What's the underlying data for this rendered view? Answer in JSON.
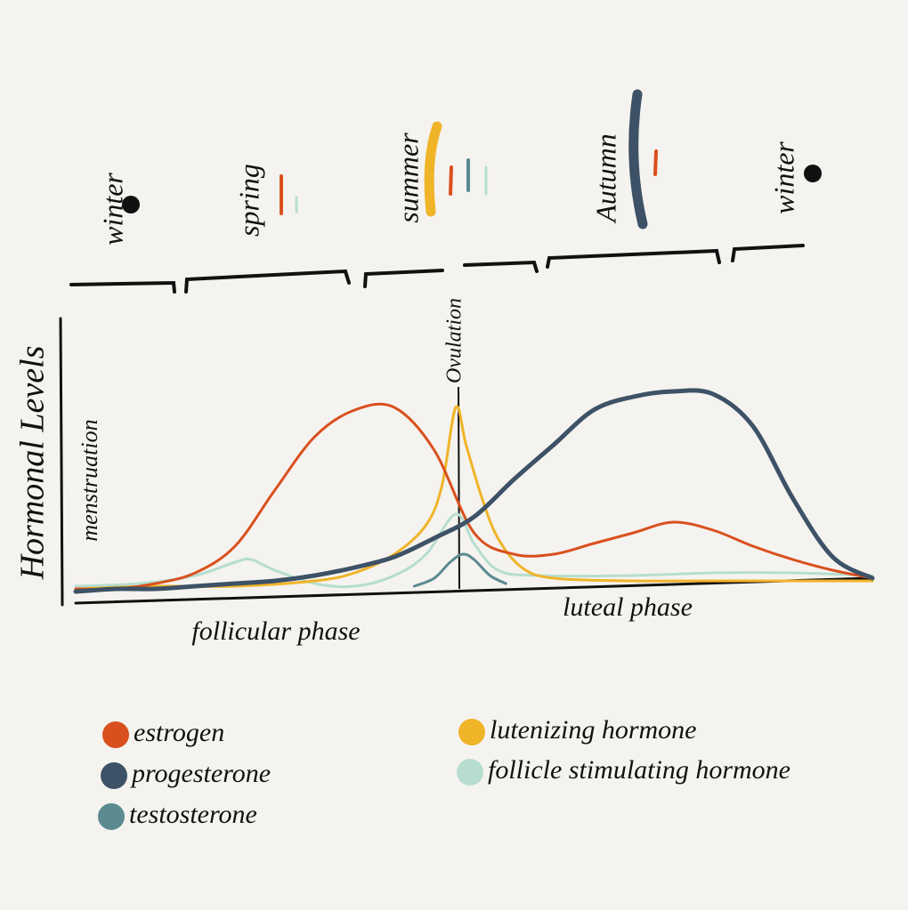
{
  "chart_data": {
    "type": "line",
    "ylabel": "Hormonal Levels",
    "seasons": [
      "winter",
      "spring",
      "summer",
      "Autumn",
      "winter"
    ],
    "annotations": [
      "Ovulation",
      "menstruation",
      "follicular phase",
      "luteal phase"
    ],
    "xlim": [
      0,
      100
    ],
    "ylim": [
      0,
      100
    ],
    "series": [
      {
        "name": "estrogen",
        "color": "#d9501e",
        "x": [
          0,
          5,
          10,
          15,
          20,
          25,
          30,
          35,
          40,
          45,
          50,
          55,
          60,
          65,
          70,
          75,
          80,
          85,
          90,
          95,
          100
        ],
        "values": [
          1,
          1,
          3,
          7,
          17,
          38,
          58,
          68,
          69,
          53,
          22,
          14,
          14,
          18,
          22,
          26,
          23,
          17,
          12,
          8,
          5
        ]
      },
      {
        "name": "progesterone",
        "color": "#3d5266",
        "x": [
          0,
          5,
          10,
          15,
          20,
          25,
          30,
          35,
          40,
          45,
          50,
          55,
          60,
          65,
          70,
          75,
          80,
          85,
          90,
          95,
          100
        ],
        "values": [
          0,
          1,
          1,
          2,
          3,
          4,
          6,
          9,
          13,
          20,
          28,
          42,
          55,
          68,
          73,
          75,
          74,
          62,
          35,
          13,
          5
        ]
      },
      {
        "name": "testosterone",
        "color": "#5b8a90",
        "x": [
          42.5,
          45,
          47,
          48.6,
          50,
          52,
          54
        ],
        "values": [
          2,
          5,
          11,
          14,
          12,
          6,
          3
        ]
      },
      {
        "name": "lutenizing hormone",
        "color": "#f0b429",
        "x": [
          0,
          10,
          20,
          30,
          35,
          40,
          44,
          46,
          47.7,
          49,
          51,
          53,
          56,
          60,
          70,
          80,
          90,
          100
        ],
        "values": [
          1,
          2,
          2,
          4,
          7,
          14,
          25,
          40,
          69,
          55,
          35,
          20,
          9,
          5,
          4,
          4,
          4,
          4
        ]
      },
      {
        "name": "follicle stimulating hormone",
        "color": "#b6ddd0",
        "x": [
          0,
          8,
          15,
          20,
          22,
          25,
          30,
          35,
          40,
          44,
          47.7,
          50,
          53,
          58,
          70,
          80,
          90,
          100
        ],
        "values": [
          2,
          3,
          6,
          11,
          12,
          8,
          3,
          2,
          6,
          14,
          29,
          18,
          8,
          6,
          6,
          7,
          7,
          6
        ]
      }
    ]
  }
}
